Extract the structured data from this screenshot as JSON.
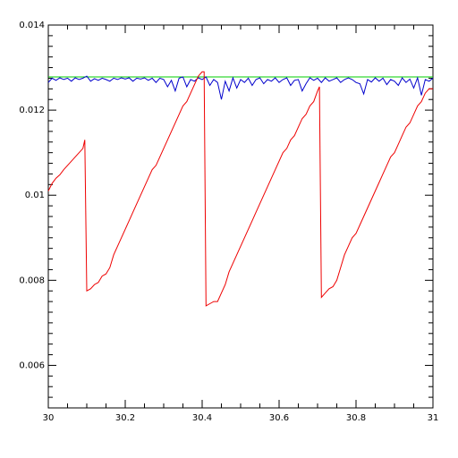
{
  "chart_data": {
    "type": "line",
    "title": "",
    "xlabel": "",
    "ylabel": "",
    "xlim": [
      30,
      31
    ],
    "ylim": [
      0.005,
      0.014
    ],
    "grid": false,
    "x_ticks": [
      30,
      30.2,
      30.4,
      30.6,
      30.8,
      31
    ],
    "x_tick_labels": [
      "30",
      "30.2",
      "30.4",
      "30.6",
      "30.8",
      "31"
    ],
    "y_ticks": [
      0.006,
      0.008,
      0.01,
      0.012,
      0.014
    ],
    "y_tick_labels": [
      "0.006",
      "0.008",
      "0.01",
      "0.012",
      "0.014"
    ],
    "series": [
      {
        "color": "#00cc00",
        "x": [
          30,
          31
        ],
        "y": [
          0.01278,
          0.01278
        ]
      },
      {
        "color": "#0000cc",
        "x": [
          30,
          30.01,
          30.02,
          30.03,
          30.04,
          30.05,
          30.06,
          30.07,
          30.08,
          30.09,
          30.1,
          30.11,
          30.12,
          30.13,
          30.14,
          30.15,
          30.16,
          30.17,
          30.18,
          30.19,
          30.2,
          30.21,
          30.22,
          30.23,
          30.24,
          30.25,
          30.26,
          30.27,
          30.28,
          30.29,
          30.3,
          30.31,
          30.32,
          30.33,
          30.34,
          30.35,
          30.36,
          30.37,
          30.38,
          30.39,
          30.4,
          30.41,
          30.42,
          30.43,
          30.44,
          30.45,
          30.46,
          30.47,
          30.48,
          30.49,
          30.5,
          30.51,
          30.52,
          30.53,
          30.54,
          30.55,
          30.56,
          30.57,
          30.58,
          30.59,
          30.6,
          30.61,
          30.62,
          30.63,
          30.64,
          30.65,
          30.66,
          30.67,
          30.68,
          30.69,
          30.7,
          30.71,
          30.72,
          30.73,
          30.74,
          30.75,
          30.76,
          30.77,
          30.78,
          30.79,
          30.8,
          30.81,
          30.82,
          30.83,
          30.84,
          30.85,
          30.86,
          30.87,
          30.88,
          30.89,
          30.9,
          30.91,
          30.92,
          30.93,
          30.94,
          30.95,
          30.96,
          30.97,
          30.98,
          30.99,
          31
        ],
        "y": [
          0.01265,
          0.01275,
          0.0127,
          0.01276,
          0.01272,
          0.01275,
          0.01268,
          0.01276,
          0.01272,
          0.01275,
          0.0128,
          0.01268,
          0.01274,
          0.0127,
          0.01275,
          0.01272,
          0.01268,
          0.01275,
          0.01272,
          0.01276,
          0.01273,
          0.01276,
          0.01268,
          0.01275,
          0.01273,
          0.01276,
          0.0127,
          0.01275,
          0.01265,
          0.01275,
          0.01272,
          0.01255,
          0.0127,
          0.01245,
          0.01275,
          0.01278,
          0.01255,
          0.01272,
          0.01268,
          0.01276,
          0.01272,
          0.01278,
          0.01258,
          0.01272,
          0.01265,
          0.01225,
          0.01268,
          0.01245,
          0.01276,
          0.01252,
          0.01272,
          0.01265,
          0.01275,
          0.01258,
          0.01272,
          0.01276,
          0.01262,
          0.01272,
          0.01268,
          0.01276,
          0.01265,
          0.01272,
          0.01276,
          0.01258,
          0.0127,
          0.01272,
          0.01245,
          0.01262,
          0.01276,
          0.0127,
          0.01275,
          0.01265,
          0.01276,
          0.01268,
          0.01272,
          0.01276,
          0.01265,
          0.01272,
          0.01276,
          0.01272,
          0.01265,
          0.01262,
          0.01238,
          0.01272,
          0.01266,
          0.01276,
          0.01268,
          0.01275,
          0.0126,
          0.01272,
          0.01268,
          0.01258,
          0.01276,
          0.01265,
          0.01273,
          0.01252,
          0.01276,
          0.01235,
          0.01272,
          0.01268,
          0.01275
        ]
      },
      {
        "color": "#ee0000",
        "x": [
          30,
          30.01,
          30.02,
          30.03,
          30.04,
          30.05,
          30.06,
          30.07,
          30.08,
          30.09,
          30.095,
          30.1,
          30.11,
          30.12,
          30.13,
          30.14,
          30.15,
          30.16,
          30.17,
          30.18,
          30.19,
          30.2,
          30.21,
          30.22,
          30.23,
          30.24,
          30.25,
          30.26,
          30.27,
          30.28,
          30.29,
          30.3,
          30.31,
          30.32,
          30.33,
          30.34,
          30.35,
          30.36,
          30.37,
          30.38,
          30.39,
          30.4,
          30.405,
          30.41,
          30.42,
          30.43,
          30.44,
          30.45,
          30.46,
          30.47,
          30.48,
          30.49,
          30.5,
          30.51,
          30.52,
          30.53,
          30.54,
          30.55,
          30.56,
          30.57,
          30.58,
          30.59,
          30.6,
          30.61,
          30.62,
          30.63,
          30.64,
          30.65,
          30.66,
          30.67,
          30.68,
          30.69,
          30.7,
          30.705,
          30.71,
          30.72,
          30.73,
          30.74,
          30.75,
          30.76,
          30.77,
          30.78,
          30.79,
          30.8,
          30.81,
          30.82,
          30.83,
          30.84,
          30.85,
          30.86,
          30.87,
          30.88,
          30.89,
          30.9,
          30.91,
          30.92,
          30.93,
          30.94,
          30.95,
          30.96,
          30.97,
          30.98,
          30.99,
          31
        ],
        "y": [
          0.0101,
          0.01028,
          0.0104,
          0.01048,
          0.0106,
          0.0107,
          0.0108,
          0.0109,
          0.011,
          0.0111,
          0.0113,
          0.00775,
          0.0078,
          0.0079,
          0.00795,
          0.0081,
          0.00815,
          0.0083,
          0.0086,
          0.0088,
          0.009,
          0.0092,
          0.0094,
          0.0096,
          0.0098,
          0.01,
          0.0102,
          0.0104,
          0.0106,
          0.0107,
          0.0109,
          0.0111,
          0.0113,
          0.0115,
          0.0117,
          0.0119,
          0.0121,
          0.0122,
          0.0124,
          0.0126,
          0.0128,
          0.0129,
          0.0129,
          0.0074,
          0.00745,
          0.0075,
          0.0075,
          0.0077,
          0.0079,
          0.0082,
          0.0084,
          0.0086,
          0.0088,
          0.009,
          0.0092,
          0.0094,
          0.0096,
          0.0098,
          0.01,
          0.0102,
          0.0104,
          0.0106,
          0.0108,
          0.011,
          0.0111,
          0.0113,
          0.0114,
          0.0116,
          0.0118,
          0.0119,
          0.0121,
          0.0122,
          0.01245,
          0.01255,
          0.0076,
          0.0077,
          0.0078,
          0.00785,
          0.008,
          0.0083,
          0.0086,
          0.0088,
          0.009,
          0.0091,
          0.0093,
          0.0095,
          0.0097,
          0.0099,
          0.0101,
          0.0103,
          0.0105,
          0.0107,
          0.0109,
          0.011,
          0.0112,
          0.0114,
          0.0116,
          0.0117,
          0.0119,
          0.0121,
          0.0122,
          0.0124,
          0.0125,
          0.0125
        ]
      }
    ]
  }
}
